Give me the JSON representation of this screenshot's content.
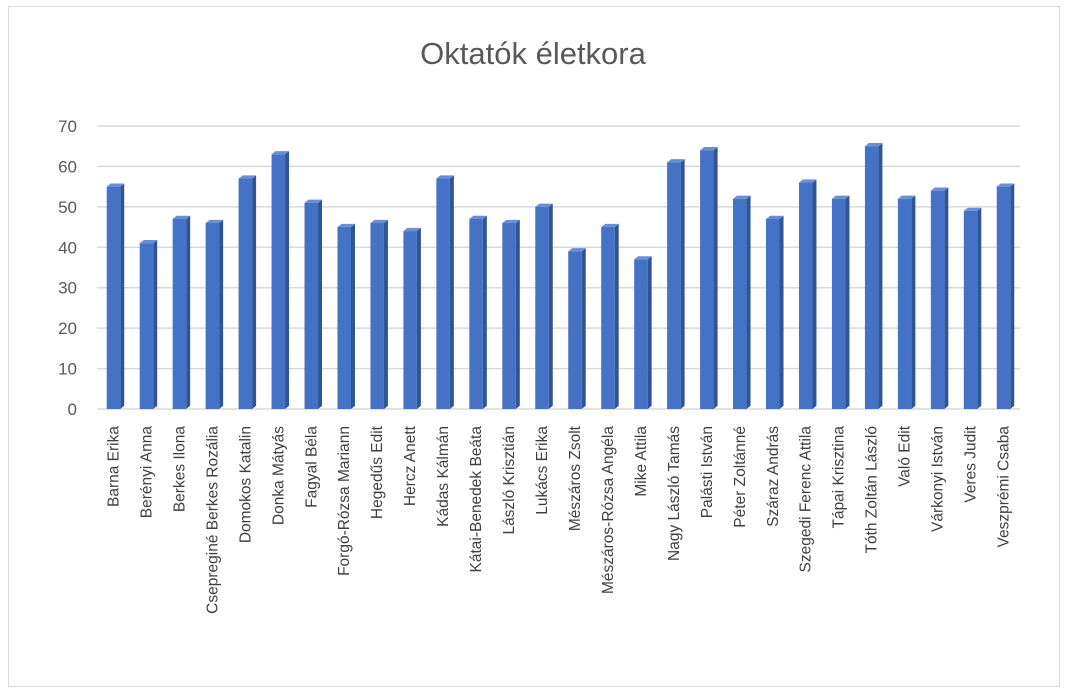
{
  "chart_data": {
    "type": "bar",
    "title": "Oktatók életkora",
    "xlabel": "",
    "ylabel": "",
    "ylim": [
      0,
      70
    ],
    "yticks": [
      "0",
      "10",
      "20",
      "30",
      "40",
      "50",
      "60",
      "70"
    ],
    "grid": true,
    "legend": "none",
    "bar_color": "#4472c4",
    "categories": [
      "Barna Erika",
      "Berényi Anna",
      "Berkes Ilona",
      "Csepreginé Berkes Rozália",
      "Domokos Katalin",
      "Donka Mátyás",
      "Fagyal Béla",
      "Forgó-Rózsa Mariann",
      "Hegedűs Edit",
      "Hercz Anett",
      "Kádas Kálmán",
      "Kátai-Benedek Beáta",
      "László Krisztián",
      "Lukács Erika",
      "Mészáros Zsolt",
      "Mészáros-Rózsa Angéla",
      "Mike Attila",
      "Nagy László Tamás",
      "Palásti István",
      "Péter Zoltánné",
      "Száraz András",
      "Szegedi Ferenc Attila",
      "Tápai Krisztina",
      "Tóth Zoltán László",
      "Való Edit",
      "Várkonyi István",
      "Veres Judit",
      "Veszprémi Csaba"
    ],
    "values": [
      55,
      41,
      47,
      46,
      57,
      63,
      51,
      45,
      46,
      44,
      57,
      47,
      46,
      50,
      39,
      45,
      37,
      61,
      64,
      52,
      47,
      56,
      52,
      65,
      52,
      54,
      49,
      55
    ]
  }
}
